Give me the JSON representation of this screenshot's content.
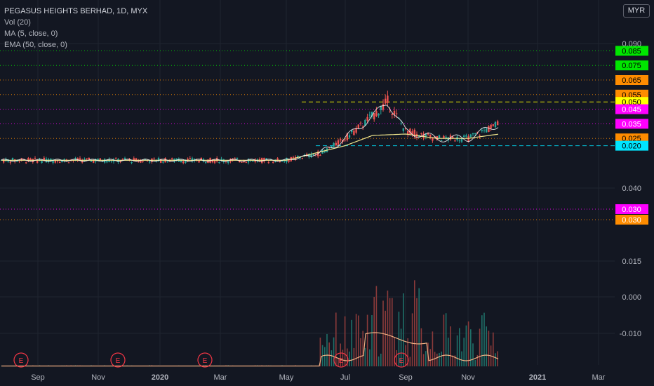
{
  "header": {
    "title": "PEGASUS HEIGHTS BERHAD, 1D, MYX",
    "indicators": [
      "Vol (20)",
      "MA (5, close, 0)",
      "EMA (50, close, 0)"
    ],
    "currency": "MYR"
  },
  "colors": {
    "background": "#131722",
    "grid": "#1f2430",
    "axis_text": "#b2b5be",
    "candle_up": "#26a69a",
    "candle_down": "#ef5350",
    "ma": "#ffffff",
    "ema": "#f0e68c",
    "volume_ma": "#f4b183",
    "earnings": "#f23645"
  },
  "chart_data": {
    "type": "candlestick",
    "title": "PEGASUS HEIGHTS BERHAD, 1D, MYX",
    "currency": "MYR",
    "x_labels": [
      "Sep",
      "Nov",
      "2020",
      "Mar",
      "May",
      "Jul",
      "Sep",
      "Nov",
      "2021",
      "Mar"
    ],
    "y_ticks": [
      "0.090",
      "0.040",
      "0.015",
      "0.000",
      "-0.010"
    ],
    "y_range": [
      -0.02,
      0.095
    ],
    "price_series": [
      {
        "date": "2019-08",
        "close": 0.01
      },
      {
        "date": "2019-10",
        "close": 0.01
      },
      {
        "date": "2020-01",
        "close": 0.01
      },
      {
        "date": "2020-03",
        "close": 0.01
      },
      {
        "date": "2020-05",
        "close": 0.01
      },
      {
        "date": "2020-06",
        "close": 0.015
      },
      {
        "date": "2020-07",
        "close": 0.025
      },
      {
        "date": "2020-08",
        "close": 0.04
      },
      {
        "date": "2020-08-15",
        "close": 0.05
      },
      {
        "date": "2020-09",
        "close": 0.03
      },
      {
        "date": "2020-10",
        "close": 0.025
      },
      {
        "date": "2020-11",
        "close": 0.025
      },
      {
        "date": "2020-11-20",
        "close": 0.035
      }
    ],
    "ema_series": [
      {
        "date": "2019-08",
        "value": 0.01
      },
      {
        "date": "2020-05",
        "value": 0.01
      },
      {
        "date": "2020-07",
        "value": 0.02
      },
      {
        "date": "2020-08",
        "value": 0.027
      },
      {
        "date": "2020-09",
        "value": 0.028
      },
      {
        "date": "2020-10",
        "value": 0.025
      },
      {
        "date": "2020-11",
        "value": 0.025
      },
      {
        "date": "2020-11-20",
        "value": 0.028
      }
    ],
    "horizontal_levels": [
      {
        "label": "0.085",
        "value": 0.085,
        "color": "#00e600",
        "text_color": "#000000"
      },
      {
        "label": "0.075",
        "value": 0.075,
        "color": "#00e600",
        "text_color": "#000000"
      },
      {
        "label": "0.065",
        "value": 0.065,
        "color": "#ff8c00",
        "text_color": "#000000"
      },
      {
        "label": "0.055",
        "value": 0.055,
        "color": "#ff8c00",
        "text_color": "#000000"
      },
      {
        "label": "0.050",
        "value": 0.05,
        "color": "#ffff00",
        "text_color": "#000000",
        "dashed": true
      },
      {
        "label": "0.045",
        "value": 0.045,
        "color": "#ff00ff",
        "text_color": "#ffffff"
      },
      {
        "label": "0.035",
        "value": 0.035,
        "color": "#ff00ff",
        "text_color": "#ffffff"
      },
      {
        "label": "0.030",
        "value": 0.03,
        "color": "#ff00ff",
        "text_color": "#ffffff"
      },
      {
        "label": "0.030",
        "value": 0.03,
        "color": "#ff8c00",
        "text_color": "#ffffff"
      },
      {
        "label": "0.025",
        "value": 0.025,
        "color": "#ff8c00",
        "text_color": "#000000"
      },
      {
        "label": "0.020",
        "value": 0.02,
        "color": "#00e5ff",
        "text_color": "#000000",
        "dashed": true
      }
    ],
    "earnings_markers": [
      "E",
      "E",
      "E",
      "E",
      "E"
    ]
  }
}
